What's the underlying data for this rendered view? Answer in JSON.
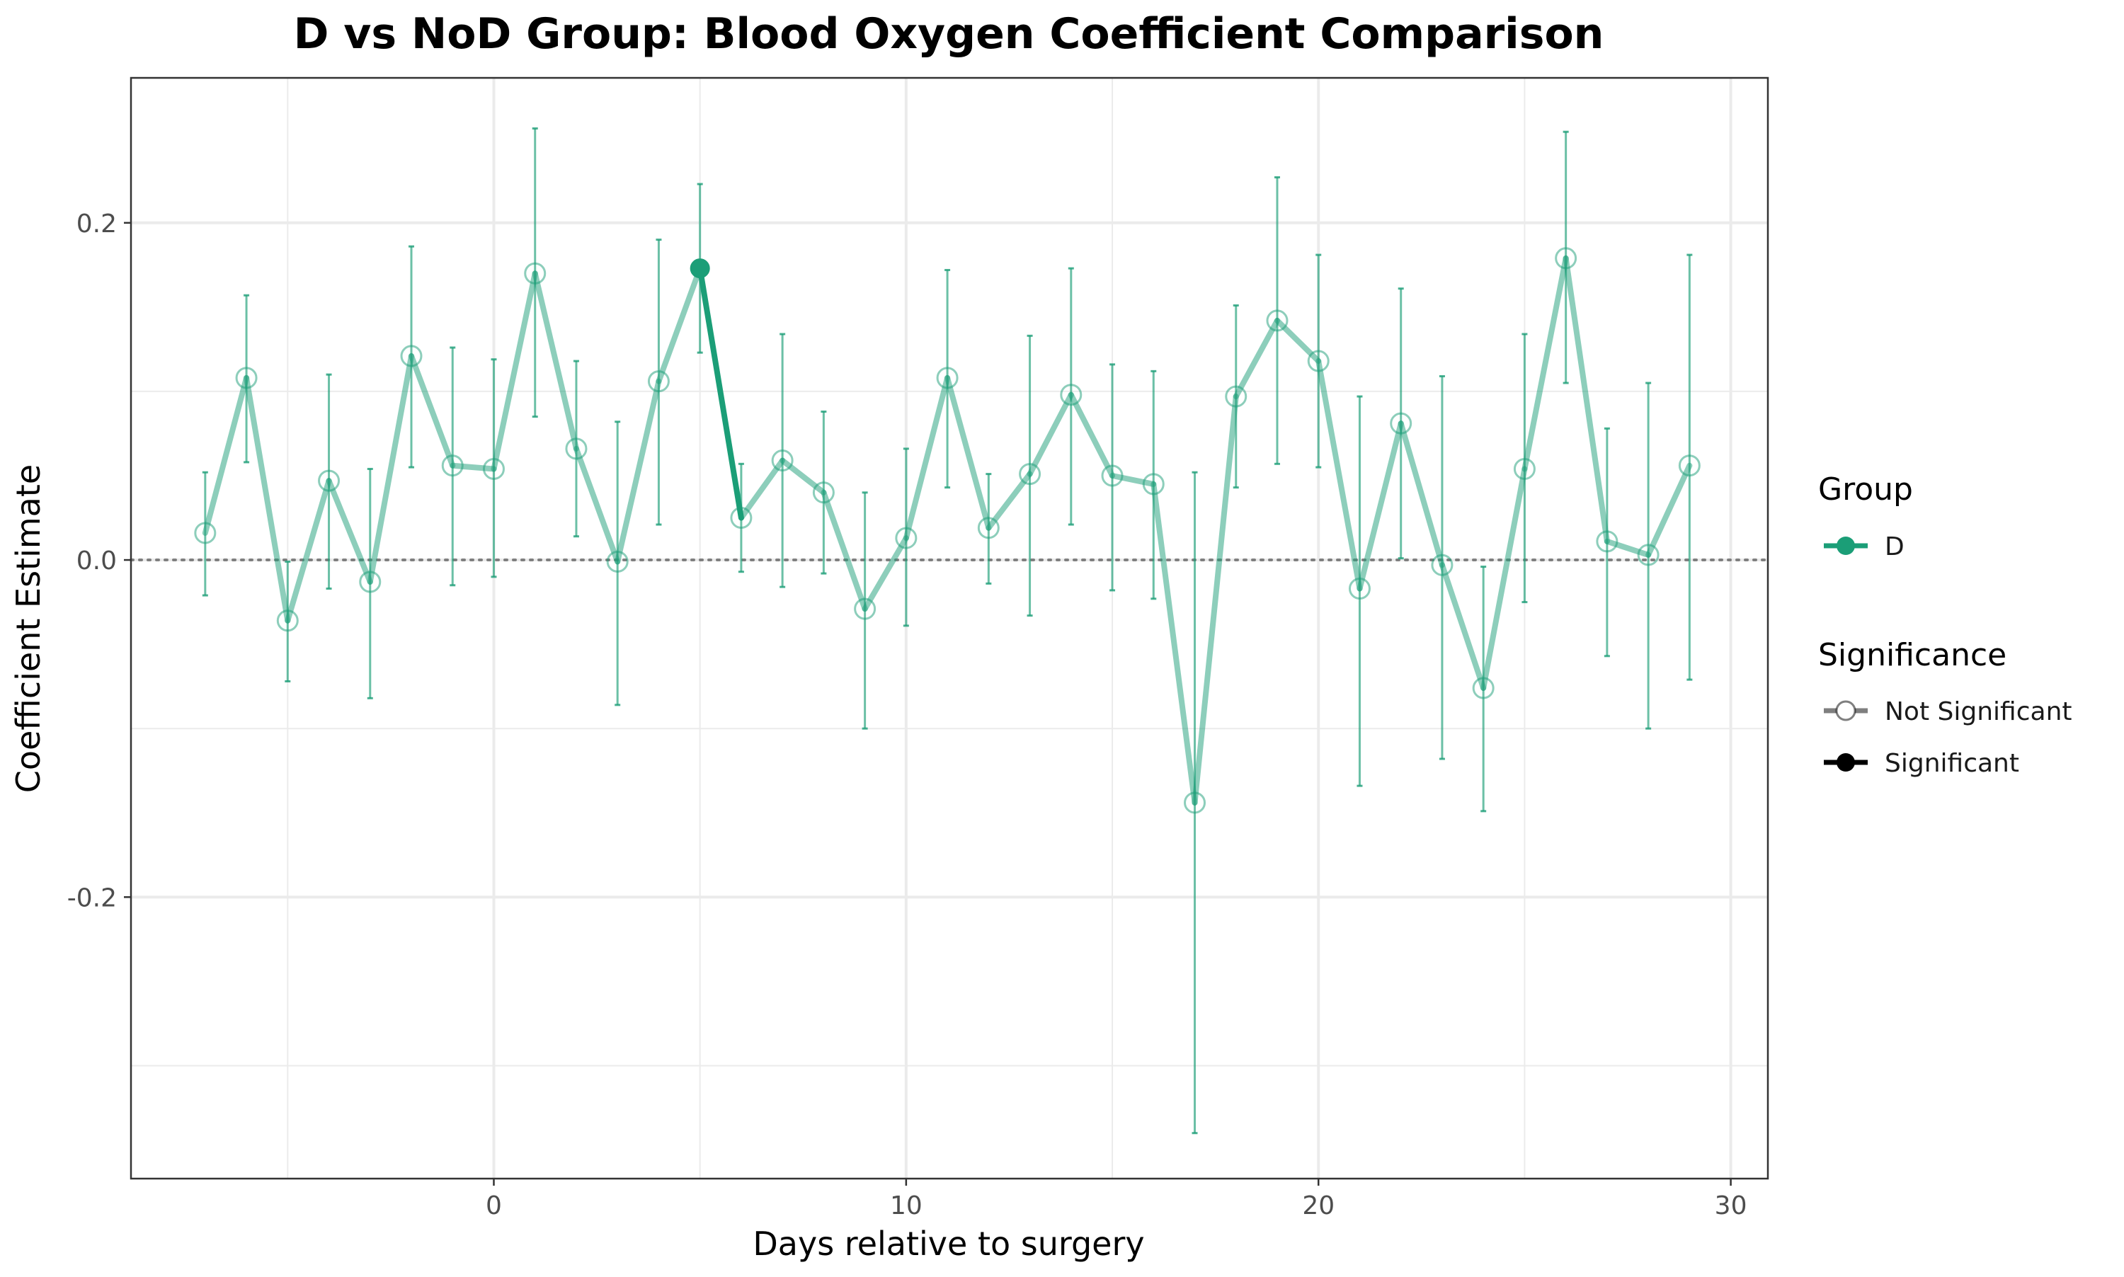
{
  "chart_data": {
    "type": "line",
    "title": "D vs NoD Group: Blood Oxygen Coefficient Comparison",
    "xlabel": "Days relative to surgery",
    "ylabel": "Coefficient Estimate",
    "xlim": [
      -8.8,
      30.9
    ],
    "ylim": [
      -0.367,
      0.286
    ],
    "x_ticks": [
      0,
      10,
      20,
      30
    ],
    "y_ticks": [
      -0.2,
      0.0,
      0.2
    ],
    "x_tick_labels": [
      "0",
      "10",
      "20",
      "30"
    ],
    "y_tick_labels": [
      "-0.2",
      "0.0",
      "0.2"
    ],
    "grid": true,
    "reference_line": {
      "y": 0.0,
      "style": "dotted"
    },
    "legend_position": "right",
    "colors": {
      "D": "#1b9e77",
      "axis_text": "#4d4d4d",
      "grid": "#ebebeb",
      "panel_border": "#333333"
    },
    "legend": {
      "group_title": "Group",
      "group_items": [
        {
          "label": "D",
          "color": "#1b9e77"
        }
      ],
      "significance_title": "Significance",
      "significance_items": [
        {
          "label": "Not Significant",
          "marker": "open-circle"
        },
        {
          "label": "Significant",
          "marker": "filled-circle"
        }
      ]
    },
    "series": [
      {
        "name": "D",
        "x": [
          -7,
          -6,
          -5,
          -4,
          -3,
          -2,
          -1,
          0,
          1,
          2,
          3,
          4,
          5,
          6,
          7,
          8,
          9,
          10,
          11,
          12,
          13,
          14,
          15,
          16,
          17,
          18,
          19,
          20,
          21,
          22,
          23,
          24,
          25,
          26,
          27,
          28,
          29
        ],
        "y": [
          0.016,
          0.108,
          -0.036,
          0.047,
          -0.013,
          0.121,
          0.056,
          0.054,
          0.17,
          0.066,
          -0.001,
          0.106,
          0.173,
          0.025,
          0.059,
          0.04,
          -0.029,
          0.013,
          0.108,
          0.019,
          0.051,
          0.098,
          0.05,
          0.045,
          -0.144,
          0.097,
          0.142,
          0.118,
          -0.017,
          0.081,
          -0.003,
          -0.076,
          0.054,
          0.179,
          0.011,
          0.003,
          0.056
        ],
        "ci_low": [
          -0.021,
          0.058,
          -0.072,
          -0.017,
          -0.082,
          0.055,
          -0.015,
          -0.01,
          0.085,
          0.014,
          -0.086,
          0.021,
          0.123,
          -0.007,
          -0.016,
          -0.008,
          -0.1,
          -0.039,
          0.043,
          -0.014,
          -0.033,
          0.021,
          -0.018,
          -0.023,
          -0.34,
          0.043,
          0.057,
          0.055,
          -0.134,
          0.001,
          -0.118,
          -0.149,
          -0.025,
          0.105,
          -0.057,
          -0.1,
          -0.071
        ],
        "ci_high": [
          0.052,
          0.157,
          -0.001,
          0.11,
          0.054,
          0.186,
          0.126,
          0.119,
          0.256,
          0.118,
          0.082,
          0.19,
          0.223,
          0.057,
          0.134,
          0.088,
          0.04,
          0.066,
          0.172,
          0.051,
          0.133,
          0.173,
          0.116,
          0.112,
          0.052,
          0.151,
          0.227,
          0.181,
          0.097,
          0.161,
          0.109,
          -0.004,
          0.134,
          0.254,
          0.078,
          0.105,
          0.181
        ],
        "significant": [
          false,
          false,
          false,
          false,
          false,
          false,
          false,
          false,
          false,
          false,
          false,
          false,
          true,
          false,
          false,
          false,
          false,
          false,
          false,
          false,
          false,
          false,
          false,
          false,
          false,
          false,
          false,
          false,
          false,
          false,
          false,
          false,
          false,
          false,
          false,
          false,
          false
        ]
      }
    ]
  }
}
